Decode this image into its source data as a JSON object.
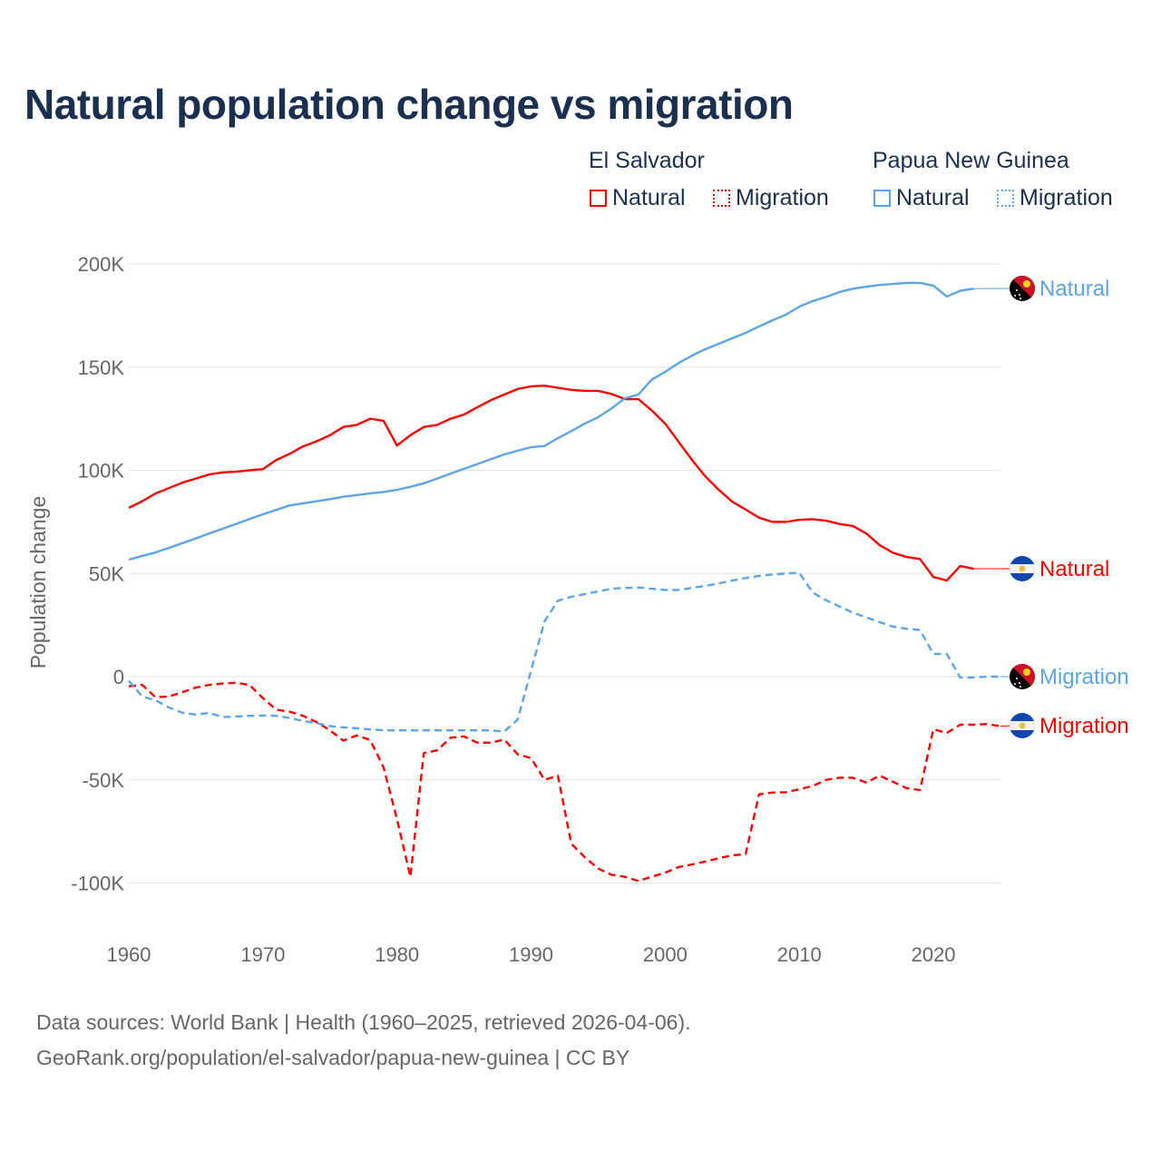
{
  "title": "Natural population change vs migration",
  "legend": {
    "groups": [
      {
        "country": "El Salvador",
        "natural": "Natural",
        "migration": "Migration",
        "color": "#ff0000"
      },
      {
        "country": "Papua New Guinea",
        "natural": "Natural",
        "migration": "Migration",
        "color": "#5ba4e9"
      }
    ]
  },
  "footer": {
    "line1": "Data sources: World Bank | Health (1960–2025, retrieved 2026-04-06).",
    "line2": "GeoRank.org/population/el-salvador/papua-new-guinea | CC BY"
  },
  "chart_data": {
    "type": "line",
    "title": "Natural population change vs migration",
    "xlabel": "",
    "ylabel": "Population change",
    "xlim": [
      1960,
      2025
    ],
    "ylim": [
      -100000,
      200000
    ],
    "x_ticks": [
      1960,
      1970,
      1980,
      1990,
      2000,
      2010,
      2020
    ],
    "x_tick_labels": [
      "1960",
      "1970",
      "1980",
      "1990",
      "2000",
      "2010",
      "2020"
    ],
    "y_ticks": [
      200000,
      150000,
      100000,
      50000,
      0,
      -50000,
      -100000
    ],
    "y_tick_labels": [
      "200K",
      "150K",
      "100K",
      "50K",
      "0",
      "-50K",
      "-100K"
    ],
    "grid": true,
    "legend_position": "top-right",
    "series": [
      {
        "name": "El Salvador Natural",
        "end_label": "Natural",
        "color": "#ff0000",
        "dash": false,
        "flag": "el-salvador",
        "start_year": 1960,
        "values": [
          81800,
          85000,
          88800,
          91400,
          94000,
          96000,
          98000,
          99000,
          99300,
          100000,
          100600,
          105000,
          108000,
          111600,
          114000,
          117000,
          121000,
          122000,
          125000,
          124000,
          112000,
          117000,
          121000,
          122000,
          125000,
          127000,
          130600,
          134000,
          136700,
          139400,
          140700,
          141000,
          140000,
          139000,
          138500,
          138500,
          137000,
          134500,
          134500,
          129000,
          122600,
          113800,
          105000,
          97000,
          90500,
          84800,
          81000,
          77000,
          75000,
          75000,
          76000,
          76300,
          75600,
          74000,
          73000,
          69400,
          63700,
          60000,
          58000,
          57000,
          48300,
          46600,
          53600,
          52300
        ]
      },
      {
        "name": "El Salvador Migration",
        "end_label": "Migration",
        "color": "#ff0000",
        "dash": true,
        "flag": "el-salvador",
        "start_year": 1960,
        "values": [
          -4700,
          -4000,
          -10000,
          -9600,
          -7500,
          -5300,
          -4000,
          -3300,
          -3000,
          -4000,
          -10400,
          -16000,
          -17000,
          -19000,
          -22000,
          -26000,
          -31000,
          -28500,
          -30700,
          -44000,
          -69000,
          -97000,
          -37000,
          -35700,
          -29600,
          -29000,
          -32000,
          -32000,
          -30500,
          -37600,
          -39500,
          -50000,
          -48000,
          -81000,
          -87500,
          -93000,
          -96000,
          -97000,
          -99000,
          -97000,
          -95000,
          -92300,
          -91000,
          -89600,
          -88000,
          -86600,
          -86000,
          -57000,
          -56200,
          -56000,
          -54600,
          -53000,
          -50000,
          -49000,
          -49000,
          -51300,
          -48000,
          -51000,
          -54000,
          -55000,
          -25500,
          -27300,
          -23300,
          -23300,
          -23000,
          -24000
        ]
      },
      {
        "name": "Papua New Guinea Natural",
        "end_label": "Natural",
        "color": "#5ba4e9",
        "dash": false,
        "flag": "papua-new-guinea",
        "start_year": 1960,
        "values": [
          56700,
          58500,
          60200,
          62400,
          64700,
          67000,
          69400,
          71700,
          74000,
          76400,
          78700,
          80800,
          83000,
          84000,
          85000,
          86000,
          87200,
          88000,
          88800,
          89500,
          90500,
          92000,
          93700,
          96000,
          98400,
          100700,
          103000,
          105400,
          107700,
          109500,
          111200,
          111800,
          115600,
          119000,
          122600,
          125700,
          130000,
          134900,
          136700,
          144000,
          147700,
          152000,
          155600,
          158700,
          161300,
          164000,
          166600,
          169700,
          172700,
          175400,
          179300,
          182000,
          184000,
          186400,
          188000,
          189000,
          189800,
          190300,
          190800,
          190800,
          189500,
          184200,
          187000,
          188000
        ]
      },
      {
        "name": "Papua New Guinea Migration",
        "end_label": "Migration",
        "color": "#5ba4e9",
        "dash": true,
        "flag": "papua-new-guinea",
        "start_year": 1960,
        "values": [
          -2000,
          -9600,
          -11500,
          -15000,
          -17500,
          -18400,
          -17600,
          -19600,
          -19300,
          -19000,
          -18800,
          -19000,
          -20000,
          -21500,
          -22500,
          -24000,
          -24600,
          -25000,
          -25600,
          -26000,
          -26000,
          -26000,
          -26000,
          -26000,
          -26000,
          -26000,
          -26000,
          -26000,
          -26600,
          -20800,
          3000,
          26800,
          36800,
          38700,
          40000,
          41300,
          42600,
          43000,
          43200,
          42600,
          42000,
          42000,
          43000,
          44000,
          45200,
          46600,
          47800,
          48800,
          49500,
          50000,
          50300,
          40700,
          37000,
          34000,
          31000,
          28700,
          26400,
          24200,
          23200,
          22600,
          11000,
          11000,
          -400,
          -400,
          0,
          0
        ]
      }
    ]
  }
}
